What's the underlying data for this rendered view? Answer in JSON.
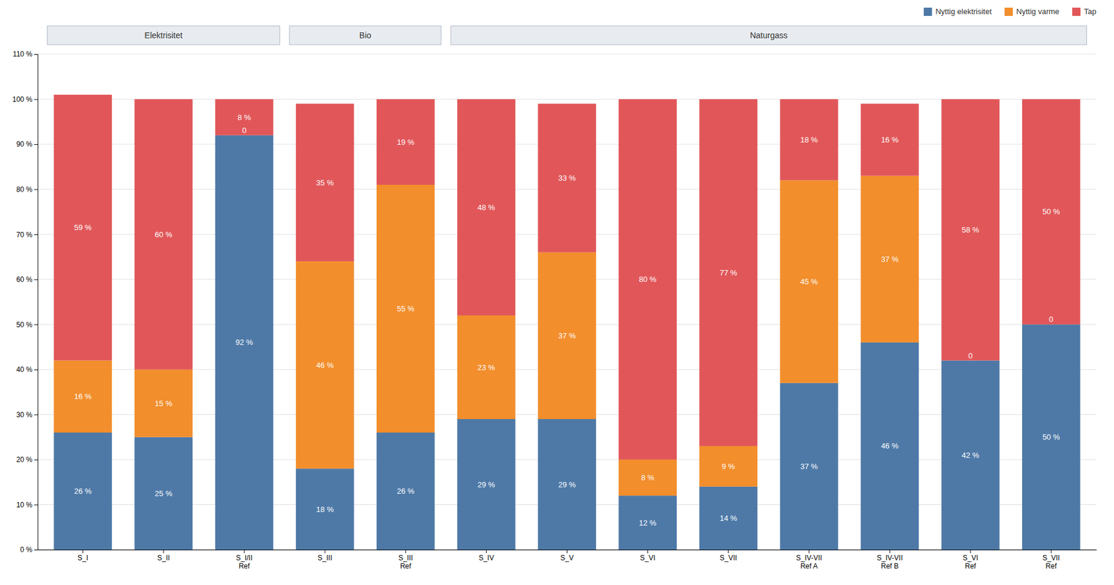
{
  "chart_data": {
    "type": "bar",
    "stacked": true,
    "data_labels": true,
    "grid": true,
    "legend": "top-right",
    "categories": [
      "S_I",
      "S_II",
      "S_I/II\nRef",
      "S_III",
      "S_III\nRef",
      "S_IV",
      "S_V",
      "S_VI",
      "S_VII",
      "S_IV-VII\nRef A",
      "S_IV-VII\nRef B",
      "S_VI\nRef",
      "S_VII\nRef"
    ],
    "series": [
      {
        "name": "Nyttig elektrisitet",
        "values": [
          26,
          25,
          92,
          18,
          26,
          29,
          29,
          12,
          14,
          37,
          46,
          42,
          50
        ],
        "value_labels": [
          "26 %",
          "25 %",
          "92 %",
          "18 %",
          "26 %",
          "29 %",
          "29 %",
          "12 %",
          "14 %",
          "37 %",
          "46 %",
          "42 %",
          "50 %"
        ]
      },
      {
        "name": "Nyttig varme",
        "values": [
          16,
          15,
          0,
          46,
          55,
          23,
          37,
          8,
          9,
          45,
          37,
          0,
          0
        ],
        "value_labels": [
          "16 %",
          "15 %",
          "0",
          "46 %",
          "55 %",
          "23 %",
          "37 %",
          "8 %",
          "9 %",
          "45 %",
          "37 %",
          "0",
          "0"
        ]
      },
      {
        "name": "Tap",
        "values": [
          59,
          60,
          8,
          35,
          19,
          48,
          33,
          80,
          77,
          18,
          16,
          58,
          50
        ],
        "value_labels": [
          "59 %",
          "60 %",
          "8 %",
          "35 %",
          "19 %",
          "48 %",
          "33 %",
          "80 %",
          "77 %",
          "18 %",
          "16 %",
          "58 %",
          "50 %"
        ]
      }
    ],
    "groups": [
      {
        "label": "Elektrisitet",
        "categories": [
          "S_I",
          "S_II",
          "S_I/II\nRef"
        ]
      },
      {
        "label": "Bio",
        "categories": [
          "S_III",
          "S_III\nRef"
        ]
      },
      {
        "label": "Naturgass",
        "categories": [
          "S_IV",
          "S_V",
          "S_VI",
          "S_VII",
          "S_IV-VII\nRef A",
          "S_IV-VII\nRef B",
          "S_VI\nRef",
          "S_VII\nRef"
        ]
      }
    ],
    "ylim": [
      0,
      110
    ],
    "yticks": [
      {
        "value": 0,
        "label": "0 %"
      },
      {
        "value": 10,
        "label": "10 %"
      },
      {
        "value": 20,
        "label": "20 %"
      },
      {
        "value": 30,
        "label": "30 %"
      },
      {
        "value": 40,
        "label": "40 %"
      },
      {
        "value": 50,
        "label": "50 %"
      },
      {
        "value": 60,
        "label": "60 %"
      },
      {
        "value": 70,
        "label": "70 %"
      },
      {
        "value": 80,
        "label": "80 %"
      },
      {
        "value": 90,
        "label": "90 %"
      },
      {
        "value": 100,
        "label": "100 %"
      },
      {
        "value": 110,
        "label": "110 %"
      }
    ]
  }
}
